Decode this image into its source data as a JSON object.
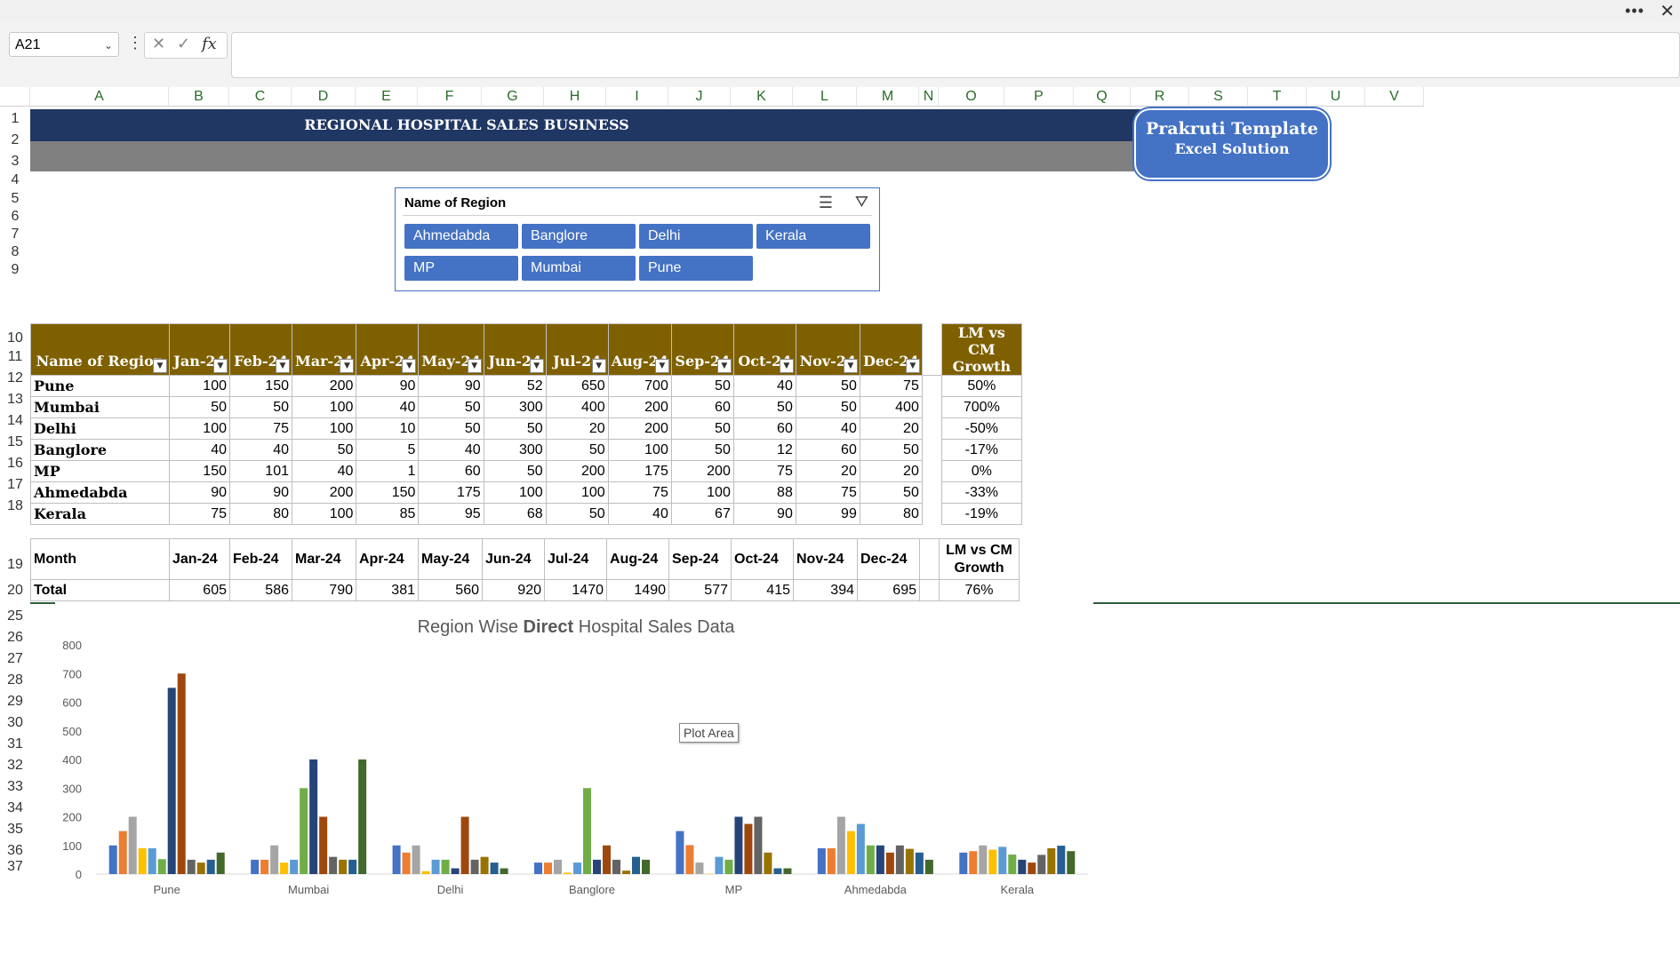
{
  "formula_bar": {
    "name_box": "A21",
    "fx": "fx",
    "value": ""
  },
  "columns": [
    "A",
    "B",
    "C",
    "D",
    "E",
    "F",
    "G",
    "H",
    "I",
    "J",
    "K",
    "L",
    "M",
    "N",
    "O",
    "P",
    "Q",
    "R",
    "S",
    "T",
    "U",
    "V"
  ],
  "rows": [
    "1",
    "2",
    "3",
    "4",
    "5",
    "6",
    "7",
    "8",
    "9",
    "10",
    "11",
    "12",
    "13",
    "14",
    "15",
    "16",
    "17",
    "18",
    "19",
    "20",
    "25",
    "26",
    "27",
    "28",
    "29",
    "30",
    "31",
    "32",
    "33",
    "34",
    "35",
    "36",
    "37"
  ],
  "banner_title": "REGIONAL HOSPITAL SALES BUSINESS",
  "badge": {
    "line1": "Prakruti Template",
    "line2": "Excel Solution"
  },
  "slicer": {
    "title": "Name of Region",
    "items": [
      "Ahmedabda",
      "Banglore",
      "Delhi",
      "Kerala",
      "MP",
      "Mumbai",
      "Pune"
    ]
  },
  "table": {
    "headers": [
      "Name of Region",
      "Jan-24",
      "Feb-24",
      "Mar-24",
      "Apr-24",
      "May-24",
      "Jun-24",
      "Jul-24",
      "Aug-24",
      "Sep-24",
      "Oct-24",
      "Nov-24",
      "Dec-24",
      "",
      "LM vs CM Growth"
    ],
    "rows": [
      {
        "region": "Pune",
        "values": [
          "100",
          "150",
          "200",
          "90",
          "90",
          "52",
          "650",
          "700",
          "50",
          "40",
          "50",
          "75"
        ],
        "growth": "50%"
      },
      {
        "region": "Mumbai",
        "values": [
          "50",
          "50",
          "100",
          "40",
          "50",
          "300",
          "400",
          "200",
          "60",
          "50",
          "50",
          "400"
        ],
        "growth": "700%"
      },
      {
        "region": "Delhi",
        "values": [
          "100",
          "75",
          "100",
          "10",
          "50",
          "50",
          "20",
          "200",
          "50",
          "60",
          "40",
          "20"
        ],
        "growth": "-50%"
      },
      {
        "region": "Banglore",
        "values": [
          "40",
          "40",
          "50",
          "5",
          "40",
          "300",
          "50",
          "100",
          "50",
          "12",
          "60",
          "50"
        ],
        "growth": "-17%"
      },
      {
        "region": "MP",
        "values": [
          "150",
          "101",
          "40",
          "1",
          "60",
          "50",
          "200",
          "175",
          "200",
          "75",
          "20",
          "20"
        ],
        "growth": "0%"
      },
      {
        "region": "Ahmedabda",
        "values": [
          "90",
          "90",
          "200",
          "150",
          "175",
          "100",
          "100",
          "75",
          "100",
          "88",
          "75",
          "50"
        ],
        "growth": "-33%"
      },
      {
        "region": "Kerala",
        "values": [
          "75",
          "80",
          "100",
          "85",
          "95",
          "68",
          "50",
          "40",
          "67",
          "90",
          "99",
          "80"
        ],
        "growth": "-19%"
      }
    ]
  },
  "summary": {
    "header": [
      "Month",
      "Jan-24",
      "Feb-24",
      "Mar-24",
      "Apr-24",
      "May-24",
      "Jun-24",
      "Jul-24",
      "Aug-24",
      "Sep-24",
      "Oct-24",
      "Nov-24",
      "Dec-24",
      "",
      "LM vs CM Growth"
    ],
    "total": [
      "Total",
      "605",
      "586",
      "790",
      "381",
      "560",
      "920",
      "1470",
      "1490",
      "577",
      "415",
      "394",
      "695",
      "",
      "76%"
    ]
  },
  "tooltip": "Plot Area",
  "chart_data": {
    "type": "bar",
    "title_parts": [
      "Region Wise ",
      "Direct",
      " Hospital Sales Data"
    ],
    "categories": [
      "Pune",
      "Mumbai",
      "Delhi",
      "Banglore",
      "MP",
      "Ahmedabda",
      "Kerala"
    ],
    "months": [
      "Jan-24",
      "Feb-24",
      "Mar-24",
      "Apr-24",
      "May-24",
      "Jun-24",
      "Jul-24",
      "Aug-24",
      "Sep-24",
      "Oct-24",
      "Nov-24",
      "Dec-24"
    ],
    "month_colors": [
      "#4472c4",
      "#ed7d31",
      "#a5a5a5",
      "#ffc000",
      "#5b9bd5",
      "#70ad47",
      "#264478",
      "#9e480e",
      "#636363",
      "#997300",
      "#255e91",
      "#43682b"
    ],
    "values": [
      [
        100,
        150,
        200,
        90,
        90,
        52,
        650,
        700,
        50,
        40,
        50,
        75
      ],
      [
        50,
        50,
        100,
        40,
        50,
        300,
        400,
        200,
        60,
        50,
        50,
        400
      ],
      [
        100,
        75,
        100,
        10,
        50,
        50,
        20,
        200,
        50,
        60,
        40,
        20
      ],
      [
        40,
        40,
        50,
        5,
        40,
        300,
        50,
        100,
        50,
        12,
        60,
        50
      ],
      [
        150,
        101,
        40,
        1,
        60,
        50,
        200,
        175,
        200,
        75,
        20,
        20
      ],
      [
        90,
        90,
        200,
        150,
        175,
        100,
        100,
        75,
        100,
        88,
        75,
        50
      ],
      [
        75,
        80,
        100,
        85,
        95,
        68,
        50,
        40,
        67,
        90,
        99,
        80
      ]
    ],
    "yticks": [
      "0",
      "100",
      "200",
      "300",
      "400",
      "500",
      "600",
      "700",
      "800"
    ],
    "ylim": [
      0,
      800
    ]
  }
}
